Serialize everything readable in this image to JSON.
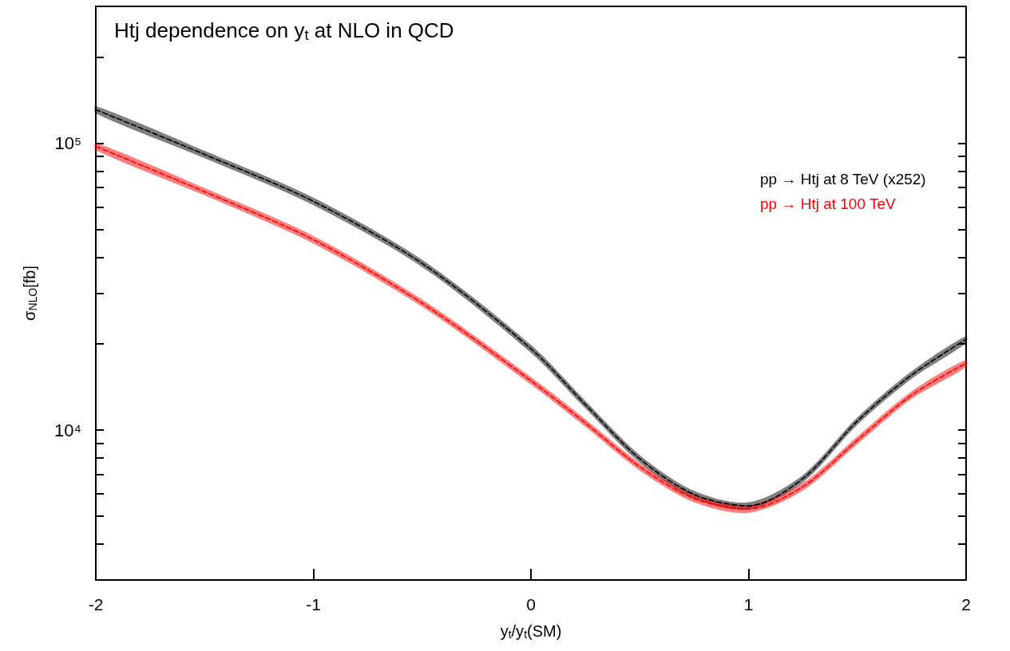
{
  "chart_data": {
    "type": "line",
    "title": "Htj dependence on y$_{t}$ at NLO in QCD",
    "xlabel": "y$_{t}$/y$_{t}$(SM)",
    "ylabel": "σ$_{NLO}$[fb]",
    "x": [
      -2,
      -1.5,
      -1,
      -0.5,
      0,
      0.25,
      0.5,
      0.75,
      1,
      1.25,
      1.5,
      1.75,
      2
    ],
    "series": [
      {
        "name": "pp → Htj at 8 TeV (x252)",
        "color": "#000000",
        "values": [
          130900,
          91400,
          62700,
          38100,
          19200,
          12270,
          7940,
          5960,
          5440,
          6770,
          10740,
          15560,
          20700
        ],
        "lower": [
          127000,
          88700,
          60800,
          37000,
          18600,
          11900,
          7700,
          5780,
          5280,
          6570,
          10420,
          15090,
          20100
        ],
        "upper": [
          134800,
          94100,
          64600,
          39200,
          19800,
          12640,
          8180,
          6140,
          5600,
          6970,
          11060,
          16030,
          21300
        ]
      },
      {
        "name": "pp → Htj at 100 TeV",
        "color": "#ff0000",
        "values": [
          97500,
          67800,
          46100,
          27700,
          14860,
          10590,
          7450,
          5770,
          5310,
          6350,
          9210,
          13250,
          17100
        ],
        "lower": [
          94600,
          65800,
          44700,
          26900,
          14410,
          10270,
          7230,
          5600,
          5150,
          6160,
          8930,
          12850,
          16600
        ],
        "upper": [
          100400,
          69800,
          47500,
          28500,
          15310,
          10910,
          7670,
          5940,
          5470,
          6540,
          9490,
          13650,
          17600
        ]
      }
    ],
    "xlim": [
      -2,
      2
    ],
    "xticks": [
      -2,
      -1,
      0,
      1,
      2
    ],
    "ylim": [
      3000,
      300000
    ],
    "yticks": [
      {
        "value": 4000,
        "label": null
      },
      {
        "value": 5000,
        "label": null
      },
      {
        "value": 6000,
        "label": null
      },
      {
        "value": 7000,
        "label": null
      },
      {
        "value": 8000,
        "label": null
      },
      {
        "value": 9000,
        "label": null
      },
      {
        "value": 10000,
        "label": "10⁴"
      },
      {
        "value": 20000,
        "label": null
      },
      {
        "value": 30000,
        "label": null
      },
      {
        "value": 40000,
        "label": null
      },
      {
        "value": 50000,
        "label": null
      },
      {
        "value": 60000,
        "label": null
      },
      {
        "value": 70000,
        "label": null
      },
      {
        "value": 80000,
        "label": null
      },
      {
        "value": 90000,
        "label": null
      },
      {
        "value": 100000,
        "label": "10⁵"
      },
      {
        "value": 200000,
        "label": null
      }
    ],
    "log": true,
    "grid": false,
    "legend": "top right",
    "marker": "none",
    "line_style": "dashed"
  }
}
